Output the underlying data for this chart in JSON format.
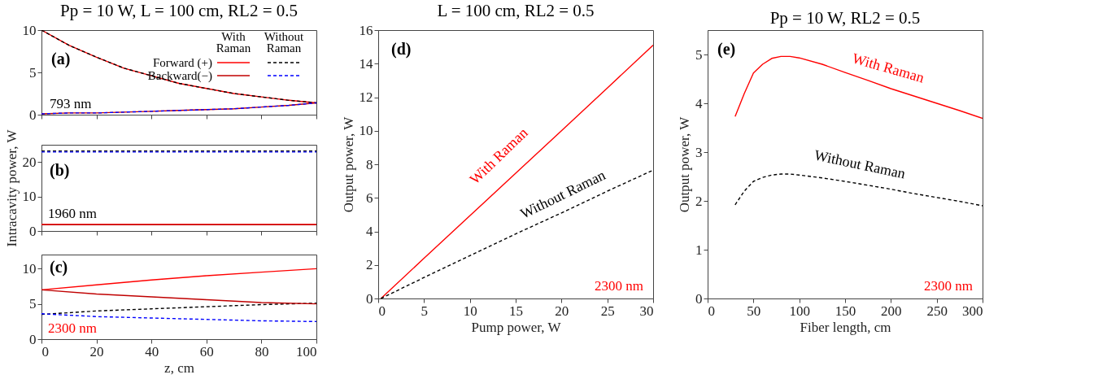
{
  "chart_data": [
    {
      "type": "line",
      "title": "Pp = 10 W, L = 100 cm, RL2 = 0.5",
      "x": [
        0,
        10,
        20,
        30,
        40,
        50,
        60,
        70,
        80,
        90,
        100
      ],
      "xlim": [
        0,
        100
      ],
      "xticks": [
        0,
        20,
        40,
        60,
        80,
        100
      ],
      "ylim": [
        0,
        10
      ],
      "yticks": [
        0,
        5,
        10
      ],
      "tick_labels": "y",
      "legend": "top right",
      "annotations": [
        "(a)",
        "793 nm",
        "With Raman",
        "Without Raman"
      ],
      "series": [
        {
          "name": "Forward (+)",
          "color": "#ff0000",
          "line_style": "solid",
          "values": [
            10,
            8.2,
            6.8,
            5.5,
            4.6,
            3.7,
            3.1,
            2.5,
            2.1,
            1.7,
            1.4
          ]
        },
        {
          "color": "#000000",
          "line_style": "dashed",
          "values": [
            10,
            8.2,
            6.8,
            5.5,
            4.6,
            3.7,
            3.1,
            2.5,
            2.1,
            1.7,
            1.4
          ]
        },
        {
          "name": "Backward(−)",
          "color": "#c00000",
          "line_style": "solid",
          "values": [
            0.1,
            0.2,
            0.2,
            0.3,
            0.4,
            0.5,
            0.6,
            0.7,
            0.9,
            1.1,
            1.4
          ]
        },
        {
          "color": "#0000ff",
          "line_style": "dashed",
          "values": [
            0.1,
            0.2,
            0.2,
            0.3,
            0.4,
            0.5,
            0.6,
            0.7,
            0.9,
            1.1,
            1.4
          ]
        }
      ]
    },
    {
      "type": "line",
      "ylabel": "Intracavity power, W",
      "x": [
        0,
        20,
        40,
        60,
        80,
        100
      ],
      "xlim": [
        0,
        100
      ],
      "xticks": [
        0,
        20,
        40,
        60,
        80,
        100
      ],
      "ylim": [
        0,
        25
      ],
      "yticks": [
        0,
        10,
        20
      ],
      "tick_labels": "y",
      "annotations": [
        "(b)",
        "1960 nm"
      ],
      "series": [
        {
          "color": "#ff0000",
          "line_style": "solid",
          "values": [
            1.9,
            1.9,
            1.9,
            1.9,
            1.9,
            1.9
          ]
        },
        {
          "color": "#000000",
          "line_style": "dashed",
          "values": [
            23.2,
            23.2,
            23.2,
            23.2,
            23.2,
            23.2
          ]
        },
        {
          "color": "#c00000",
          "line_style": "solid",
          "values": [
            1.8,
            1.8,
            1.8,
            1.8,
            1.8,
            1.8
          ]
        },
        {
          "color": "#0000ff",
          "line_style": "dashed",
          "values": [
            22.9,
            22.9,
            22.9,
            22.9,
            22.9,
            22.9
          ]
        }
      ]
    },
    {
      "type": "line",
      "xlabel": "z, cm",
      "x": [
        0,
        20,
        40,
        60,
        80,
        100
      ],
      "xlim": [
        0,
        100
      ],
      "xticks": [
        0,
        20,
        40,
        60,
        80,
        100
      ],
      "ylim": [
        0,
        12
      ],
      "yticks": [
        0,
        5,
        10
      ],
      "annotations": [
        "(c)",
        "2300 nm"
      ],
      "series": [
        {
          "color": "#ff0000",
          "line_style": "solid",
          "values": [
            7.0,
            7.7,
            8.4,
            9.0,
            9.5,
            10.0
          ]
        },
        {
          "color": "#000000",
          "line_style": "dashed",
          "values": [
            3.5,
            4.0,
            4.3,
            4.6,
            4.9,
            5.1
          ]
        },
        {
          "color": "#c00000",
          "line_style": "solid",
          "values": [
            7.0,
            6.4,
            6.0,
            5.6,
            5.2,
            5.0
          ]
        },
        {
          "color": "#0000ff",
          "line_style": "dashed",
          "values": [
            3.6,
            3.2,
            3.0,
            2.8,
            2.6,
            2.5
          ]
        }
      ]
    },
    {
      "type": "line",
      "title": "L = 100 cm, RL2 = 0.5",
      "xlabel": "Pump power, W",
      "ylabel": "Output power, W",
      "x": [
        0.3,
        5,
        10,
        15,
        20,
        25,
        30
      ],
      "xlim": [
        0,
        30
      ],
      "xticks": [
        0,
        5,
        10,
        15,
        20,
        25,
        30
      ],
      "ylim": [
        0,
        16
      ],
      "yticks": [
        0,
        2,
        4,
        6,
        8,
        10,
        12,
        14,
        16
      ],
      "annotations": [
        "(d)",
        "2300 nm"
      ],
      "series": [
        {
          "name": "With Raman",
          "color": "#ff0000",
          "line_style": "solid",
          "values": [
            0,
            2.4,
            4.93,
            7.47,
            10.0,
            12.55,
            15.1
          ]
        },
        {
          "name": "Without Raman",
          "color": "#000000",
          "line_style": "dashed",
          "values": [
            0,
            1.25,
            2.55,
            3.85,
            5.1,
            6.4,
            7.65
          ]
        }
      ]
    },
    {
      "type": "line",
      "title": "Pp = 10 W, RL2 = 0.5",
      "xlabel": "Fiber length, cm",
      "ylabel": "Output power, W",
      "x": [
        30,
        40,
        50,
        60,
        70,
        80,
        90,
        100,
        125,
        150,
        175,
        200,
        225,
        250,
        275,
        300
      ],
      "xlim": [
        0,
        300
      ],
      "xticks": [
        0,
        50,
        100,
        150,
        200,
        250,
        300
      ],
      "ylim": [
        0,
        5.5
      ],
      "yticks": [
        0,
        1,
        2,
        3,
        4,
        5
      ],
      "annotations": [
        "(e)",
        "2300 nm"
      ],
      "series": [
        {
          "name": "With Raman",
          "color": "#ff0000",
          "line_style": "solid",
          "values": [
            3.73,
            4.2,
            4.62,
            4.8,
            4.92,
            4.96,
            4.96,
            4.93,
            4.8,
            4.63,
            4.47,
            4.3,
            4.15,
            4.0,
            3.85,
            3.69
          ]
        },
        {
          "name": "Without Raman",
          "color": "#000000",
          "line_style": "dashed",
          "values": [
            1.92,
            2.2,
            2.4,
            2.48,
            2.53,
            2.55,
            2.55,
            2.53,
            2.47,
            2.4,
            2.32,
            2.24,
            2.15,
            2.07,
            1.99,
            1.9
          ]
        }
      ]
    }
  ]
}
